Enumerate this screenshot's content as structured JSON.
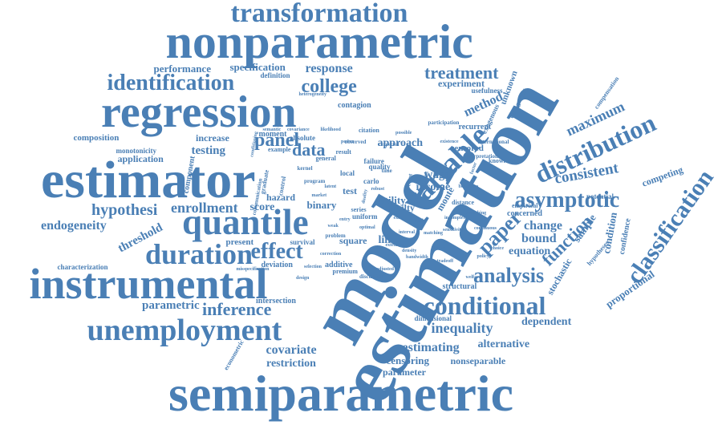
{
  "cloud": {
    "color": "#4a7fb5",
    "words": [
      {
        "text": "transformation"
      },
      {
        "text": "nonparametric"
      },
      {
        "text": "performance"
      },
      {
        "text": "specification"
      },
      {
        "text": "response"
      },
      {
        "text": "definition"
      },
      {
        "text": "identification"
      },
      {
        "text": "college"
      },
      {
        "text": "treatment"
      },
      {
        "text": "experiment"
      },
      {
        "text": "regression"
      },
      {
        "text": "contagion"
      },
      {
        "text": "panel"
      },
      {
        "text": "composition"
      },
      {
        "text": "increase"
      },
      {
        "text": "testing"
      },
      {
        "text": "monotonicity"
      },
      {
        "text": "application"
      },
      {
        "text": "estimator"
      },
      {
        "text": "data"
      },
      {
        "text": "hypothesi"
      },
      {
        "text": "enrollment"
      },
      {
        "text": "score"
      },
      {
        "text": "quantile"
      },
      {
        "text": "endogeneity"
      },
      {
        "text": "threshold"
      },
      {
        "text": "duration"
      },
      {
        "text": "effect"
      },
      {
        "text": "present"
      },
      {
        "text": "survival"
      },
      {
        "text": "square"
      },
      {
        "text": "linear"
      },
      {
        "text": "instrumental"
      },
      {
        "text": "characterization"
      },
      {
        "text": "deviation"
      },
      {
        "text": "additive"
      },
      {
        "text": "parametric"
      },
      {
        "text": "intersection"
      },
      {
        "text": "inference"
      },
      {
        "text": "unemployment"
      },
      {
        "text": "covariate"
      },
      {
        "text": "restriction"
      },
      {
        "text": "semiparametric"
      },
      {
        "text": "model"
      },
      {
        "text": "estimation"
      },
      {
        "text": "variable"
      },
      {
        "text": "approach"
      },
      {
        "text": "method"
      },
      {
        "text": "unknown"
      },
      {
        "text": "distribution"
      },
      {
        "text": "maximum"
      },
      {
        "text": "consistent"
      },
      {
        "text": "asymptotic"
      },
      {
        "text": "competing"
      },
      {
        "text": "classification"
      },
      {
        "text": "paper"
      },
      {
        "text": "change"
      },
      {
        "text": "bound"
      },
      {
        "text": "equation"
      },
      {
        "text": "function"
      },
      {
        "text": "analysis"
      },
      {
        "text": "sample"
      },
      {
        "text": "condition"
      },
      {
        "text": "confidence"
      },
      {
        "text": "stochastic"
      },
      {
        "text": "proportional"
      },
      {
        "text": "conditional"
      },
      {
        "text": "inequality"
      },
      {
        "text": "dependent"
      },
      {
        "text": "estimating"
      },
      {
        "text": "alternative"
      },
      {
        "text": "censoring"
      },
      {
        "text": "nonseparable"
      },
      {
        "text": "parameter"
      },
      {
        "text": "wage"
      },
      {
        "text": "income"
      },
      {
        "text": "binary"
      },
      {
        "text": "utility"
      },
      {
        "text": "frailty"
      },
      {
        "text": "monte"
      },
      {
        "text": "carlo"
      },
      {
        "text": "local"
      },
      {
        "text": "test"
      },
      {
        "text": "quality"
      },
      {
        "text": "failure"
      },
      {
        "text": "recurrent"
      },
      {
        "text": "censored"
      },
      {
        "text": "potential"
      },
      {
        "text": "hazard"
      },
      {
        "text": "component"
      },
      {
        "text": "structural"
      },
      {
        "text": "dimensional"
      },
      {
        "text": "concerned"
      },
      {
        "text": "empirical"
      },
      {
        "text": "uniform"
      },
      {
        "text": "series"
      },
      {
        "text": "moment"
      },
      {
        "text": "absolute"
      },
      {
        "text": "citation"
      },
      {
        "text": "general"
      },
      {
        "text": "example"
      },
      {
        "text": "result"
      },
      {
        "text": "exogenous"
      },
      {
        "text": "usefulness"
      },
      {
        "text": "compensation"
      },
      {
        "text": "endogenous"
      },
      {
        "text": "knowledge"
      },
      {
        "text": "distance"
      },
      {
        "text": "hypotheses"
      },
      {
        "text": "econometric"
      },
      {
        "text": "problem"
      },
      {
        "text": "premium"
      },
      {
        "text": "discussion"
      },
      {
        "text": "graduate"
      },
      {
        "text": "control"
      },
      {
        "text": "time"
      },
      {
        "text": "event"
      },
      {
        "text": "efficient"
      },
      {
        "text": "program"
      },
      {
        "text": "international"
      },
      {
        "text": "participation"
      },
      {
        "text": "observed"
      },
      {
        "text": "kernel"
      },
      {
        "text": "interpretation"
      },
      {
        "text": "communication"
      },
      {
        "text": "misspecification"
      },
      {
        "text": "heterogeneity"
      },
      {
        "text": "semantic"
      },
      {
        "text": "conditioning"
      },
      {
        "text": "covariance"
      },
      {
        "text": "expected"
      },
      {
        "text": "adjusted"
      },
      {
        "text": "possible"
      },
      {
        "text": "existence"
      },
      {
        "text": "duality"
      },
      {
        "text": "latent"
      },
      {
        "text": "extensive"
      },
      {
        "text": "incomplete"
      },
      {
        "text": "rank"
      },
      {
        "text": "factor"
      },
      {
        "text": "robust"
      },
      {
        "text": "matching"
      },
      {
        "text": "selection"
      },
      {
        "text": "sensitivity"
      },
      {
        "text": "interval"
      },
      {
        "text": "continuous"
      },
      {
        "text": "power"
      },
      {
        "text": "likelihood"
      },
      {
        "text": "bootstrap"
      },
      {
        "text": "weak"
      },
      {
        "text": "optimal"
      },
      {
        "text": "smoothing"
      },
      {
        "text": "density"
      },
      {
        "text": "tradeoff"
      },
      {
        "text": "correction"
      },
      {
        "text": "bandwidth"
      },
      {
        "text": "entry"
      },
      {
        "text": "exit"
      },
      {
        "text": "market"
      },
      {
        "text": "labor"
      },
      {
        "text": "design"
      },
      {
        "text": "policy"
      },
      {
        "text": "choice"
      },
      {
        "text": "welfare"
      }
    ]
  }
}
